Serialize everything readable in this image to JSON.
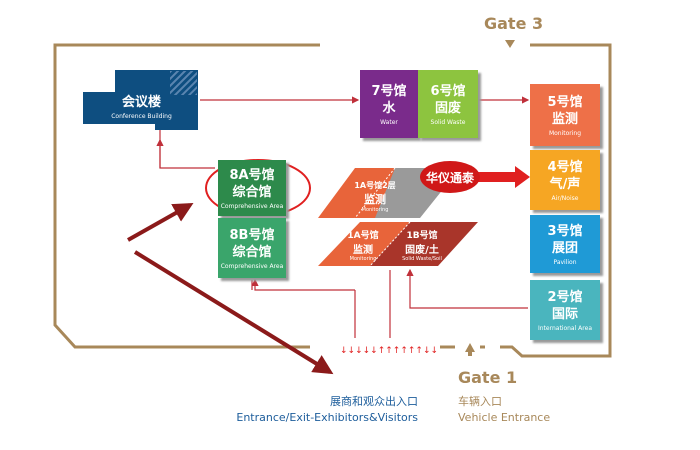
{
  "gates": {
    "gate3": "Gate 3",
    "gate1": "Gate 1"
  },
  "conference": {
    "zh": "会议楼",
    "en": "Conference Building"
  },
  "halls": [
    {
      "id": "7",
      "num": "7号馆",
      "zh": "水",
      "en": "Water",
      "color": "#7a2b8b"
    },
    {
      "id": "6",
      "num": "6号馆",
      "zh": "固废",
      "en": "Solid Waste",
      "color": "#8dc43f"
    },
    {
      "id": "5",
      "num": "5号馆",
      "zh": "监测",
      "en": "Monitoring",
      "color": "#ee7048"
    },
    {
      "id": "4",
      "num": "4号馆",
      "zh": "气/声",
      "en": "Air/Noise",
      "color": "#f6a623"
    },
    {
      "id": "3",
      "num": "3号馆",
      "zh": "展团",
      "en": "Pavilion",
      "color": "#1f9ad6"
    },
    {
      "id": "2",
      "num": "2号馆",
      "zh": "国际",
      "en": "International Area",
      "color": "#4ab5be"
    },
    {
      "id": "8A",
      "num": "8A号馆",
      "zh": "综合馆",
      "en": "Comprehensive Area",
      "color": "#2d8a4b"
    },
    {
      "id": "8B",
      "num": "8B号馆",
      "zh": "综合馆",
      "en": "Comprehensive Area",
      "color": "#3aa56b"
    },
    {
      "id": "1A2",
      "num": "1A号馆2层",
      "zh": "监测",
      "en": "Monitoring",
      "color": "#e8643a"
    },
    {
      "id": "1A",
      "num": "1A号馆",
      "zh": "监测",
      "en": "Monitoring",
      "color": "#e8643a"
    },
    {
      "id": "1B",
      "num": "1B号馆",
      "zh": "固废/土",
      "en": "Solid Waste/Soil",
      "color": "#a9352a"
    }
  ],
  "company": "华仪通泰",
  "entrance": {
    "zh": "展商和观众出入口",
    "en": "Entrance/Exit-Exhibitors&Visitors"
  },
  "vehicle": {
    "zh": "车辆入口",
    "en": "Vehicle Entrance"
  }
}
